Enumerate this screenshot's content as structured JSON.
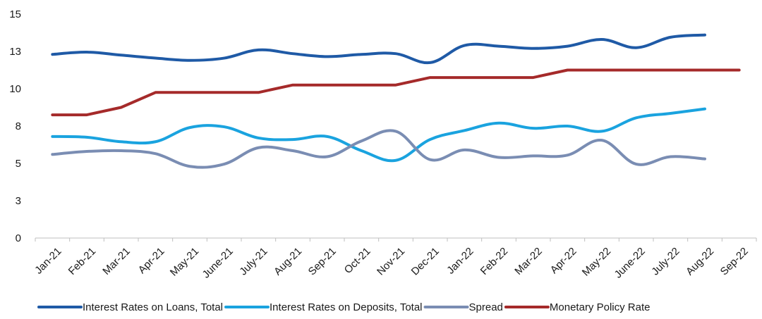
{
  "chart_data": {
    "type": "line",
    "title": "",
    "xlabel": "",
    "ylabel": "",
    "categories": [
      "Jan-21",
      "Feb-21",
      "Mar-21",
      "Apr-21",
      "May-21",
      "June-21",
      "July-21",
      "Aug-21",
      "Sep-21",
      "Oct-21",
      "Nov-21",
      "Dec-21",
      "Jan-22",
      "Feb-22",
      "Mar-22",
      "Apr-22",
      "May-22",
      "June-22",
      "July-22",
      "Aug-22",
      "Sep-22"
    ],
    "y_tick_values": [
      0,
      2.5,
      5,
      7.5,
      10,
      12.5,
      15
    ],
    "y_tick_labels": [
      "0",
      "3",
      "5",
      "8",
      "10",
      "13",
      "15"
    ],
    "ylim": [
      0,
      15
    ],
    "grid": false,
    "legend_position": "bottom",
    "series": [
      {
        "name": "Interest Rates on Loans, Total",
        "color": "#1f5aa6",
        "values": [
          12.3,
          12.45,
          12.25,
          12.05,
          11.9,
          12.05,
          12.6,
          12.35,
          12.15,
          12.3,
          12.35,
          11.75,
          12.9,
          12.85,
          12.7,
          12.85,
          13.3,
          12.75,
          13.45,
          13.6,
          null
        ]
      },
      {
        "name": "Interest Rates on Deposits, Total",
        "color": "#1aa3df",
        "values": [
          6.8,
          6.75,
          6.45,
          6.45,
          7.4,
          7.45,
          6.7,
          6.6,
          6.8,
          5.85,
          5.2,
          6.6,
          7.2,
          7.7,
          7.35,
          7.5,
          7.15,
          8.05,
          8.35,
          8.65,
          null
        ]
      },
      {
        "name": "Spread",
        "color": "#7a8db3",
        "values": [
          5.6,
          5.8,
          5.85,
          5.65,
          4.8,
          4.95,
          6.05,
          5.85,
          5.45,
          6.5,
          7.15,
          5.25,
          5.9,
          5.4,
          5.5,
          5.55,
          6.55,
          4.95,
          5.45,
          5.3,
          null
        ]
      },
      {
        "name": "Monetary Policy Rate",
        "color": "#a52a2a",
        "values": [
          8.25,
          8.25,
          8.75,
          9.75,
          9.75,
          9.75,
          9.75,
          10.25,
          10.25,
          10.25,
          10.25,
          10.75,
          10.75,
          10.75,
          10.75,
          11.25,
          11.25,
          11.25,
          11.25,
          11.25,
          11.25
        ]
      }
    ]
  }
}
